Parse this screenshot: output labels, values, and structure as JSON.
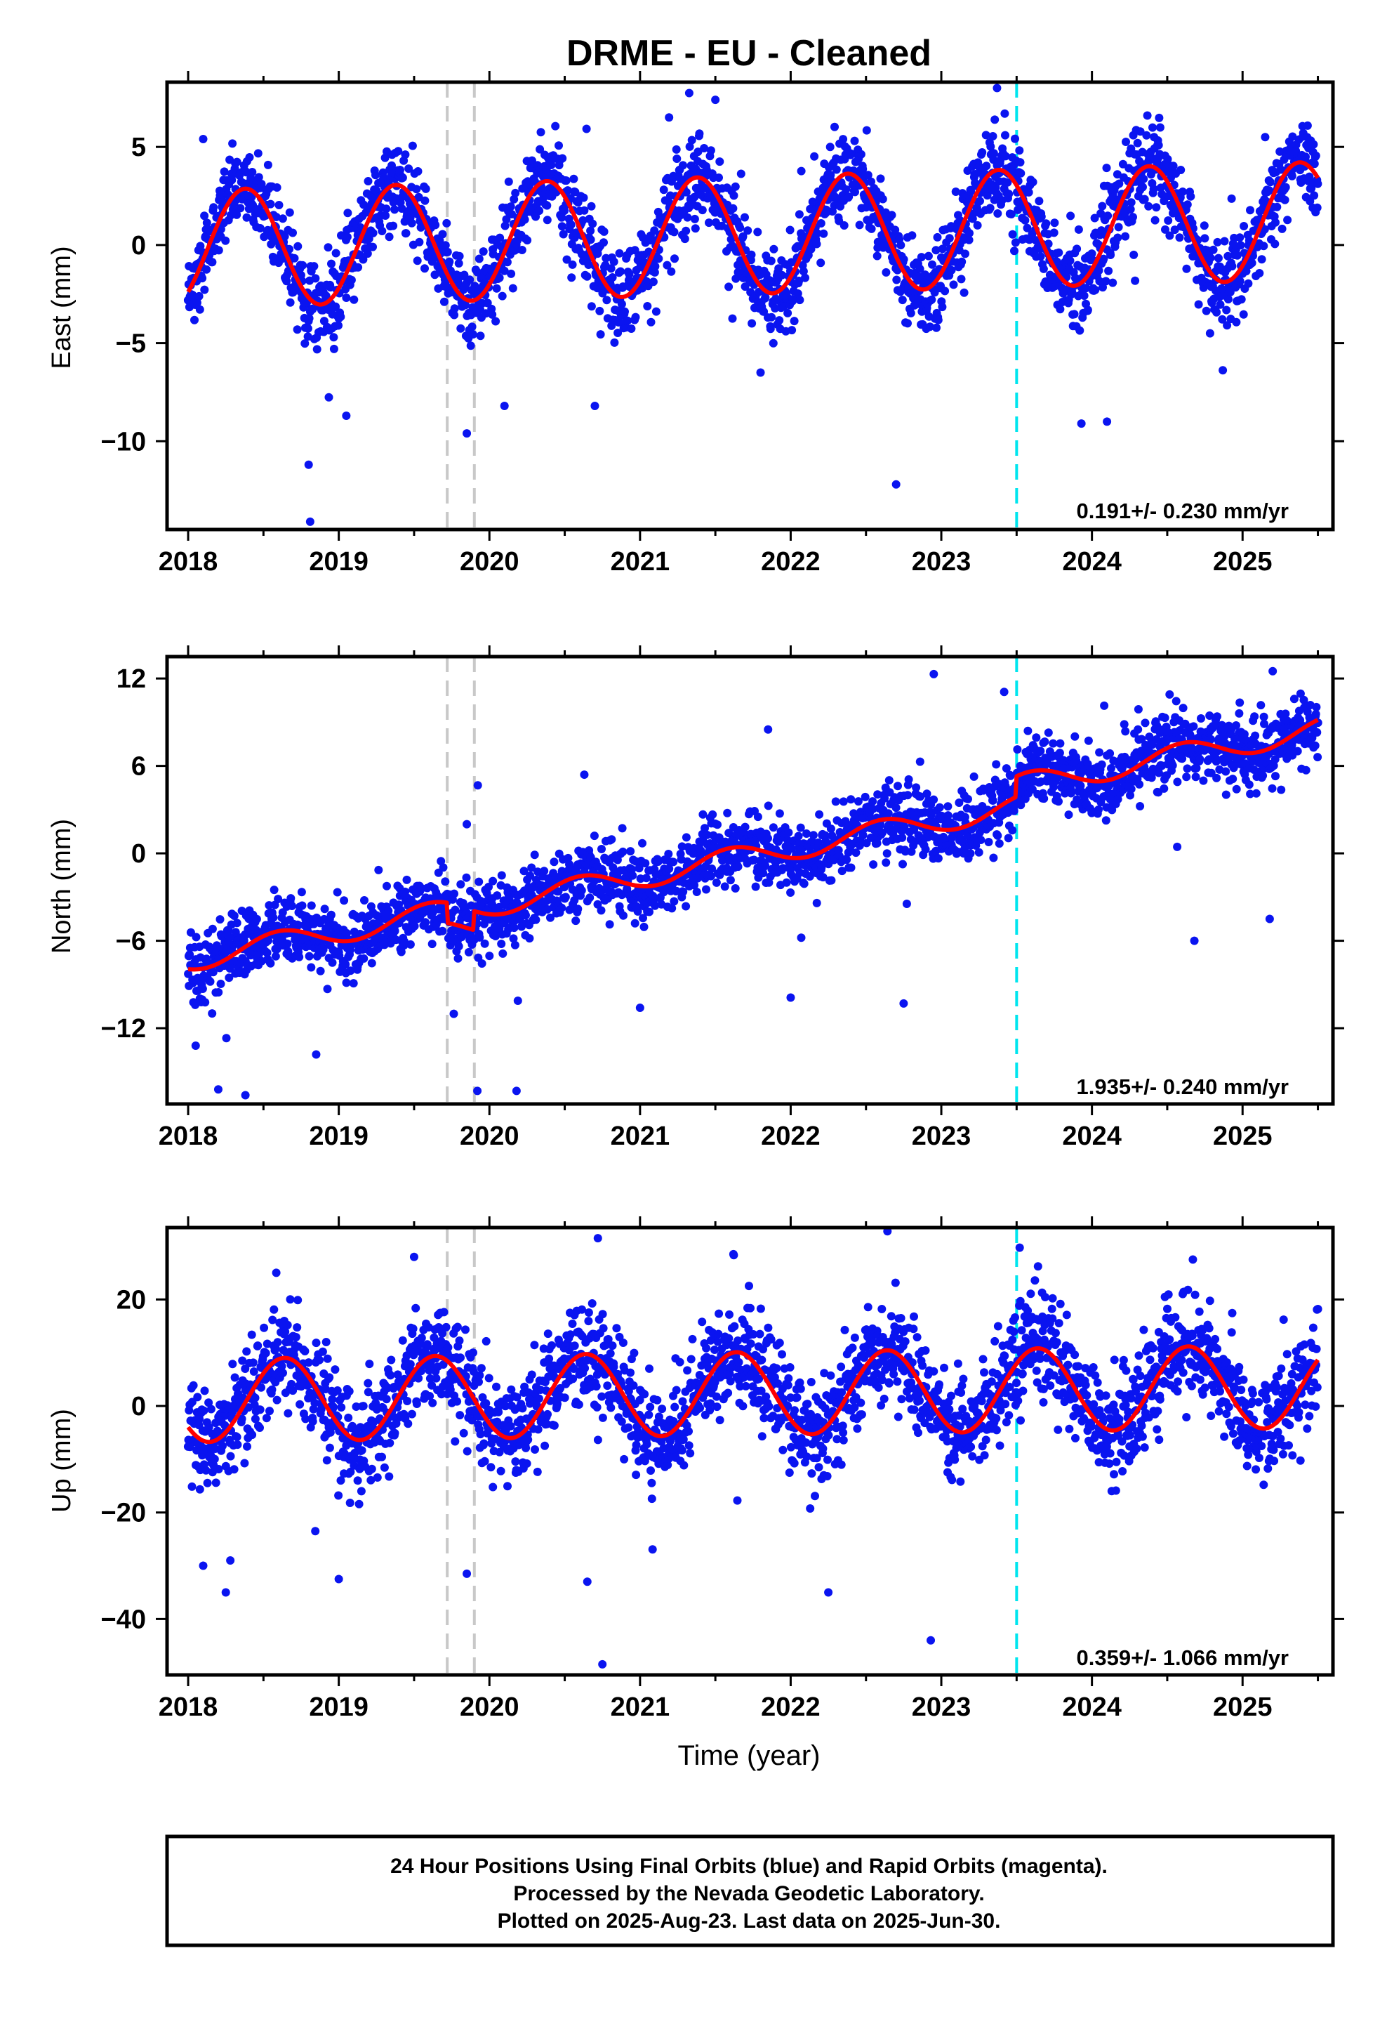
{
  "title": "DRME  - EU - Cleaned",
  "colors": {
    "points": "#0a14f0",
    "fit": "#ff0000",
    "gray_marker": "#c8c8c8",
    "cyan_marker": "#00e5ee",
    "frame": "#000000"
  },
  "xlabel": "Time (year)",
  "footer_lines": [
    "24 Hour Positions Using Final Orbits (blue) and Rapid Orbits (magenta).",
    "Processed by the Nevada Geodetic Laboratory.",
    "Plotted on 2025-Aug-23. Last data on 2025-Jun-30."
  ],
  "chart_data": [
    {
      "type": "scatter",
      "component": "east",
      "ylabel": "East (mm)",
      "rate_label": "0.191+/- 0.230 mm/yr",
      "xlim": [
        2017.86,
        2025.6
      ],
      "ylim": [
        -14.5,
        8.3
      ],
      "x_ticks": [
        2018,
        2019,
        2020,
        2021,
        2022,
        2023,
        2024,
        2025
      ],
      "y_ticks": [
        5,
        0,
        -5,
        -10
      ],
      "y_tick_labels": [
        "5",
        "0",
        "−5",
        "−10"
      ],
      "gray_event_lines": [
        2019.72,
        2019.9
      ],
      "cyan_event_line": 2023.5,
      "x_range": [
        2018.0,
        2025.5
      ],
      "fit_model": {
        "offset": -0.2,
        "trend": 0.191,
        "annual_amplitude": 3.0,
        "annual_peak": 0.38,
        "steps": []
      },
      "scatter_sigma": 1.1,
      "outliers": [
        {
          "x": 2018.1,
          "y": 5.4
        },
        {
          "x": 2018.8,
          "y": -11.2
        },
        {
          "x": 2018.81,
          "y": -14.1
        },
        {
          "x": 2019.05,
          "y": -8.7
        },
        {
          "x": 2019.85,
          "y": -9.6
        },
        {
          "x": 2020.1,
          "y": -8.2
        },
        {
          "x": 2020.7,
          "y": -8.2
        },
        {
          "x": 2021.5,
          "y": 7.4
        },
        {
          "x": 2021.8,
          "y": -6.5
        },
        {
          "x": 2022.7,
          "y": -12.2
        },
        {
          "x": 2023.37,
          "y": 8.0
        },
        {
          "x": 2023.93,
          "y": -9.1
        },
        {
          "x": 2024.1,
          "y": -9.0
        },
        {
          "x": 2025.15,
          "y": 5.5
        }
      ]
    },
    {
      "type": "scatter",
      "component": "north",
      "ylabel": "North (mm)",
      "rate_label": "1.935+/- 0.240 mm/yr",
      "xlim": [
        2017.86,
        2025.6
      ],
      "ylim": [
        -17.2,
        13.5
      ],
      "x_ticks": [
        2018,
        2019,
        2020,
        2021,
        2022,
        2023,
        2024,
        2025
      ],
      "y_ticks": [
        12,
        6,
        0,
        -6,
        -12
      ],
      "y_tick_labels": [
        "12",
        "6",
        "0",
        "−6",
        "−12"
      ],
      "gray_event_lines": [
        2019.72,
        2019.9
      ],
      "cyan_event_line": 2023.5,
      "x_range": [
        2018.0,
        2025.5
      ],
      "fit_model": {
        "offset": -7.3,
        "trend": 1.935,
        "annual_amplitude": 0.8,
        "annual_peak": 0.6,
        "steps": [
          {
            "x": 2019.72,
            "dy": -1.4
          },
          {
            "x": 2019.9,
            "dy": 1.3
          },
          {
            "x": 2023.5,
            "dy": 1.4
          }
        ]
      },
      "scatter_sigma": 1.2,
      "outliers": [
        {
          "x": 2018.05,
          "y": -13.2
        },
        {
          "x": 2018.2,
          "y": -16.2
        },
        {
          "x": 2018.38,
          "y": -16.6
        },
        {
          "x": 2018.85,
          "y": -13.8
        },
        {
          "x": 2019.92,
          "y": -16.3
        },
        {
          "x": 2020.18,
          "y": -16.3
        },
        {
          "x": 2019.85,
          "y": 2.0
        },
        {
          "x": 2020.63,
          "y": 5.4
        },
        {
          "x": 2021.0,
          "y": -10.6
        },
        {
          "x": 2021.85,
          "y": 8.5
        },
        {
          "x": 2022.0,
          "y": -9.9
        },
        {
          "x": 2022.75,
          "y": -10.3
        },
        {
          "x": 2022.95,
          "y": 12.3
        },
        {
          "x": 2024.68,
          "y": -6.0
        },
        {
          "x": 2025.2,
          "y": 12.5
        },
        {
          "x": 2025.18,
          "y": -4.5
        }
      ]
    },
    {
      "type": "scatter",
      "component": "up",
      "ylabel": "Up (mm)",
      "rate_label": "0.359+/- 1.066 mm/yr",
      "xlim": [
        2017.86,
        2025.6
      ],
      "ylim": [
        -50.5,
        33.5
      ],
      "x_ticks": [
        2018,
        2019,
        2020,
        2021,
        2022,
        2023,
        2024,
        2025
      ],
      "y_ticks": [
        20,
        0,
        -20,
        -40
      ],
      "y_tick_labels": [
        "20",
        "0",
        "−20",
        "−40"
      ],
      "gray_event_lines": [
        2019.72,
        2019.9
      ],
      "cyan_event_line": 2023.5,
      "x_range": [
        2018.0,
        2025.5
      ],
      "fit_model": {
        "offset": 1.0,
        "trend": 0.359,
        "annual_amplitude": 7.8,
        "annual_peak": 0.64,
        "steps": []
      },
      "scatter_sigma": 4.8,
      "outliers": [
        {
          "x": 2018.1,
          "y": -30.0
        },
        {
          "x": 2018.25,
          "y": -35.0
        },
        {
          "x": 2018.28,
          "y": -29.0
        },
        {
          "x": 2019.0,
          "y": -32.5
        },
        {
          "x": 2019.85,
          "y": -31.5
        },
        {
          "x": 2020.65,
          "y": -33.0
        },
        {
          "x": 2020.72,
          "y": 31.5
        },
        {
          "x": 2020.75,
          "y": -48.5
        },
        {
          "x": 2021.62,
          "y": 28.5
        },
        {
          "x": 2022.25,
          "y": -35.0
        },
        {
          "x": 2022.93,
          "y": -44.0
        },
        {
          "x": 2019.5,
          "y": 28.0
        },
        {
          "x": 2024.67,
          "y": 27.5
        }
      ]
    }
  ]
}
